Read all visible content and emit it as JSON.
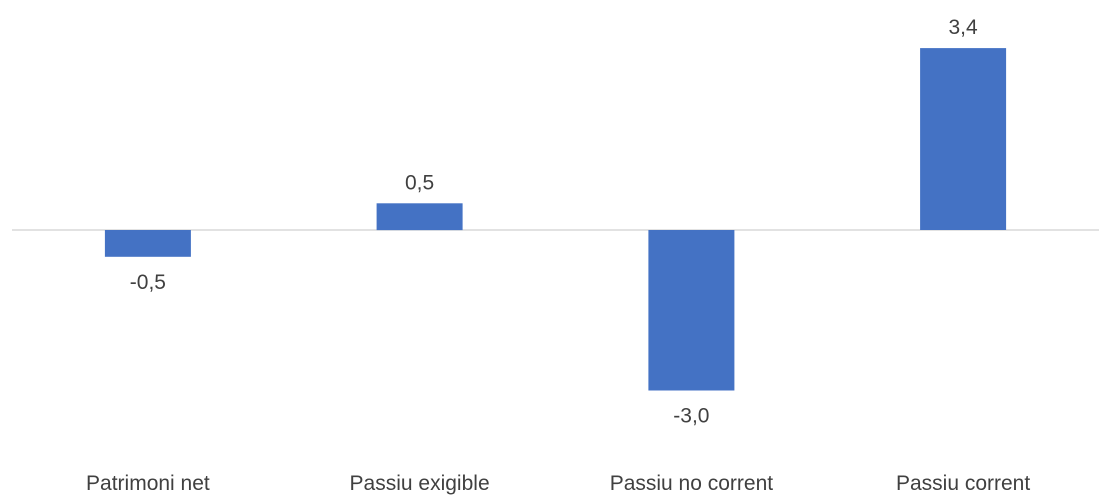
{
  "chart_data": {
    "type": "bar",
    "categories": [
      "Patrimoni net",
      "Passiu exigible",
      "Passiu no corrent",
      "Passiu corrent"
    ],
    "values": [
      -0.5,
      0.5,
      -3.0,
      3.4
    ],
    "value_labels": [
      "-0,5",
      "0,5",
      "-3,0",
      "3,4"
    ],
    "title": "",
    "xlabel": "",
    "ylabel": "",
    "ylim": [
      -3.0,
      3.4
    ],
    "grid": false,
    "legend": "none",
    "bar_color": "#4472C4",
    "axis_color": "#D9D9D9",
    "label_color": "#404040"
  }
}
